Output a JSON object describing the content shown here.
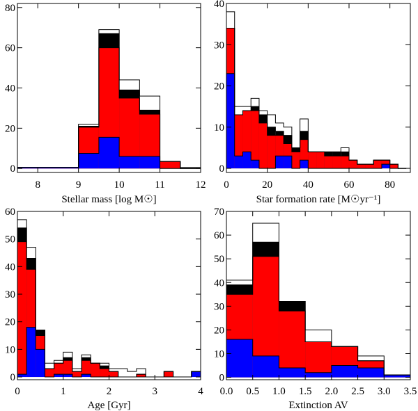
{
  "chart_data": [
    {
      "type": "bar",
      "xlabel": "Stellar mass [log M☉]",
      "ylabel": "",
      "xlim": [
        7.5,
        12
      ],
      "ylim": [
        -2,
        82
      ],
      "xticks": [
        8,
        9,
        10,
        11,
        12
      ],
      "yticks": [
        0,
        20,
        40,
        60,
        80
      ],
      "bin_edges": [
        7.5,
        9.0,
        9.5,
        10.0,
        10.5,
        11.0,
        11.5,
        12.0
      ],
      "series": [
        {
          "name": "blue",
          "color": "#0000ff",
          "values": [
            0.5,
            7.5,
            15.5,
            6,
            6,
            0,
            0
          ]
        },
        {
          "name": "red",
          "color": "#ff0000",
          "values": [
            0.5,
            20.5,
            60,
            35,
            27,
            3.5,
            0
          ]
        },
        {
          "name": "black",
          "color": "#000000",
          "values": [
            0.5,
            21,
            67,
            39,
            29,
            3.5,
            0
          ]
        },
        {
          "name": "white",
          "color": "#ffffff",
          "values": [
            0.5,
            22,
            69,
            44,
            36,
            3.5,
            0.5
          ]
        }
      ]
    },
    {
      "type": "bar",
      "xlabel": "Star formation rate [M☉yr⁻¹]",
      "ylabel": "",
      "xlim": [
        0,
        90
      ],
      "ylim": [
        -1,
        40
      ],
      "xticks": [
        0,
        20,
        40,
        60,
        80
      ],
      "yticks": [
        0,
        10,
        20,
        30,
        40
      ],
      "bin_edges": [
        0,
        4,
        8,
        12,
        16,
        20,
        24,
        28,
        32,
        36,
        40,
        44,
        48,
        52,
        56,
        60,
        64,
        68,
        72,
        76,
        80,
        84,
        88
      ],
      "series": [
        {
          "name": "blue",
          "color": "#0000ff",
          "values": [
            23,
            3,
            4,
            2,
            0,
            0,
            3,
            3,
            0,
            2,
            0,
            0,
            0,
            0,
            0,
            0,
            0,
            0,
            0,
            1,
            0,
            0
          ]
        },
        {
          "name": "red",
          "color": "#ff0000",
          "values": [
            34,
            13,
            14,
            14,
            11,
            8,
            8,
            6,
            4,
            7,
            4,
            4,
            3,
            3,
            3,
            2,
            1,
            1,
            2,
            2,
            1,
            0
          ]
        },
        {
          "name": "black",
          "color": "#000000",
          "values": [
            34,
            13,
            14,
            15,
            13,
            10,
            9,
            8,
            5,
            9,
            4,
            4,
            4,
            4,
            4,
            2,
            1,
            1,
            2,
            2,
            1,
            0
          ]
        },
        {
          "name": "white",
          "color": "#ffffff",
          "values": [
            38,
            15,
            15,
            17,
            14,
            13,
            11,
            10,
            5,
            12,
            4,
            4,
            4,
            4,
            5,
            2,
            1,
            1,
            2,
            2,
            1,
            0
          ]
        }
      ]
    },
    {
      "type": "bar",
      "xlabel": "Age [Gyr]",
      "ylabel": "",
      "xlim": [
        0,
        4
      ],
      "ylim": [
        -1,
        60
      ],
      "xticks": [
        0,
        1,
        2,
        3,
        4
      ],
      "yticks": [
        0,
        10,
        20,
        30,
        40,
        50,
        60
      ],
      "bin_edges": [
        0,
        0.2,
        0.4,
        0.6,
        0.8,
        1.0,
        1.2,
        1.4,
        1.6,
        1.8,
        2.0,
        2.2,
        2.4,
        2.6,
        2.8,
        3.0,
        3.2,
        3.4,
        3.6,
        3.8,
        4.0
      ],
      "series": [
        {
          "name": "blue",
          "color": "#0000ff",
          "values": [
            1,
            18,
            10,
            0,
            1,
            1,
            0,
            1,
            0,
            0,
            0,
            0,
            0,
            0,
            0,
            0,
            0,
            0,
            0,
            2
          ]
        },
        {
          "name": "red",
          "color": "#ff0000",
          "values": [
            49,
            39,
            15,
            3,
            5,
            6,
            2,
            6,
            5,
            3,
            2,
            0,
            0,
            1,
            0,
            0,
            2,
            0,
            0,
            2
          ]
        },
        {
          "name": "black",
          "color": "#000000",
          "values": [
            54,
            43,
            17,
            3,
            5,
            7,
            2,
            7,
            5,
            4,
            2,
            0,
            0,
            1,
            0,
            0,
            2,
            0,
            0,
            2
          ]
        },
        {
          "name": "white",
          "color": "#ffffff",
          "values": [
            57,
            47,
            17,
            5,
            6,
            9,
            3,
            8,
            5,
            5,
            3,
            3,
            2,
            3,
            0,
            0,
            2,
            0,
            0,
            2
          ]
        }
      ]
    },
    {
      "type": "bar",
      "xlabel": "Extinction AV",
      "ylabel": "",
      "xlim": [
        0,
        3.5
      ],
      "ylim": [
        -1,
        70
      ],
      "xticks": [
        0.0,
        0.5,
        1.0,
        1.5,
        2.0,
        2.5,
        3.0,
        3.5
      ],
      "yticks": [
        0,
        10,
        20,
        30,
        40,
        50,
        60,
        70
      ],
      "bin_edges": [
        0,
        0.5,
        1.0,
        1.5,
        2.0,
        2.5,
        3.0,
        3.5
      ],
      "series": [
        {
          "name": "blue",
          "color": "#0000ff",
          "values": [
            16,
            9,
            4,
            2,
            5,
            4,
            1
          ]
        },
        {
          "name": "red",
          "color": "#ff0000",
          "values": [
            35,
            51,
            28,
            15,
            13,
            7,
            1
          ]
        },
        {
          "name": "black",
          "color": "#000000",
          "values": [
            39,
            57,
            32,
            15,
            13,
            7,
            1
          ]
        },
        {
          "name": "white",
          "color": "#ffffff",
          "values": [
            41,
            65,
            32,
            20,
            13,
            9,
            1
          ]
        }
      ]
    }
  ]
}
